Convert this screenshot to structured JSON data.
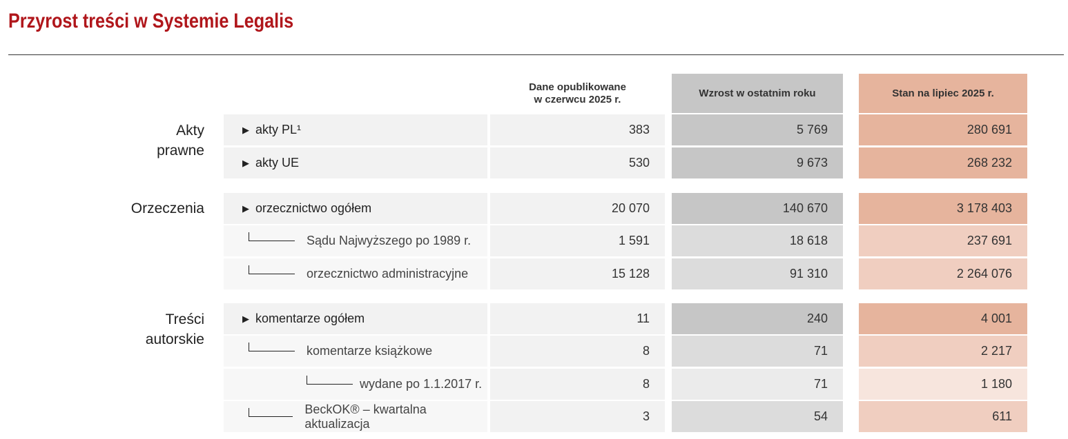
{
  "title": "Przyrost treści w Systemie Legalis",
  "columns": {
    "dane": "Dane opublikowane\nw  czerwcu 2025 r.",
    "wzrost": "Wzrost w ostatnim roku",
    "stan": "Stan na lipiec 2025 r."
  },
  "groups": {
    "akty": "Akty\nprawne",
    "orzeczenia": "Orzeczenia",
    "tresci": "Treści\nautorskie"
  },
  "rows": [
    {
      "label": "akty PL¹",
      "dane": "383",
      "wzrost": "5 769",
      "stan": "280 691"
    },
    {
      "label": "akty UE",
      "dane": "530",
      "wzrost": "9 673",
      "stan": "268 232"
    },
    {
      "label": "orzecznictwo ogółem",
      "dane": "20 070",
      "wzrost": "140 670",
      "stan": "3 178 403"
    },
    {
      "label": "Sądu Najwyższego po 1989 r.",
      "dane": "1 591",
      "wzrost": "18 618",
      "stan": "237 691"
    },
    {
      "label": "orzecznictwo administracyjne",
      "dane": "15 128",
      "wzrost": "91 310",
      "stan": "2 264 076"
    },
    {
      "label": "komentarze ogółem",
      "dane": "11",
      "wzrost": "240",
      "stan": "4 001"
    },
    {
      "label": "komentarze książkowe",
      "dane": "8",
      "wzrost": "71",
      "stan": "2 217"
    },
    {
      "label": "wydane po 1.1.2017 r.",
      "dane": "8",
      "wzrost": "71",
      "stan": "1 180"
    },
    {
      "label": "BeckOK® – kwartalna aktualizacja",
      "dane": "3",
      "wzrost": "54",
      "stan": "611"
    }
  ],
  "colors": {
    "title": "#b0161b",
    "wzrost_header": "#c6c6c6",
    "stan_header": "#e6b49d"
  }
}
